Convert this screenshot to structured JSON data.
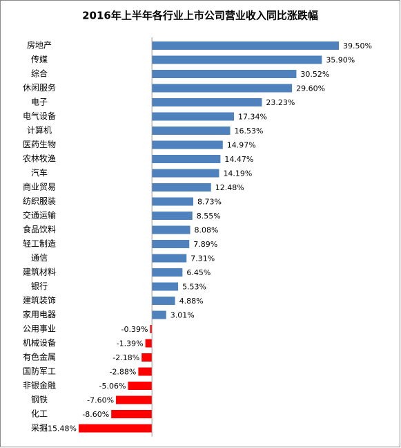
{
  "chart_data": {
    "type": "hbar",
    "title": "2016年上半年各行业上市公司营业收入同比涨跌幅",
    "categories": [
      "房地产",
      "传媒",
      "综合",
      "休闲服务",
      "电子",
      "电气设备",
      "计算机",
      "医药生物",
      "农林牧渔",
      "汽车",
      "商业贸易",
      "纺织服装",
      "交通运输",
      "食品饮料",
      "轻工制造",
      "通信",
      "建筑材料",
      "银行",
      "建筑装饰",
      "家用电器",
      "公用事业",
      "机械设备",
      "有色金属",
      "国防军工",
      "非银金融",
      "钢铁",
      "化工",
      "采掘"
    ],
    "values": [
      39.5,
      35.9,
      30.52,
      29.6,
      23.23,
      17.34,
      16.53,
      14.97,
      14.47,
      14.19,
      12.48,
      8.73,
      8.55,
      8.08,
      7.89,
      7.31,
      6.45,
      5.53,
      4.88,
      3.01,
      -0.39,
      -1.39,
      -2.18,
      -2.88,
      -5.06,
      -7.6,
      -8.6,
      -15.48
    ],
    "value_labels": [
      "39.50%",
      "35.90%",
      "30.52%",
      "29.60%",
      "23.23%",
      "17.34%",
      "16.53%",
      "14.97%",
      "14.47%",
      "14.19%",
      "12.48%",
      "8.73%",
      "8.55%",
      "8.08%",
      "7.89%",
      "7.31%",
      "6.45%",
      "5.53%",
      "4.88%",
      "3.01%",
      "-0.39%",
      "-1.39%",
      "-2.18%",
      "-2.88%",
      "-5.06%",
      "-7.60%",
      "-8.60%",
      "-15.48%"
    ],
    "positive_color": "#4f81bd",
    "negative_color": "#ff0000"
  }
}
